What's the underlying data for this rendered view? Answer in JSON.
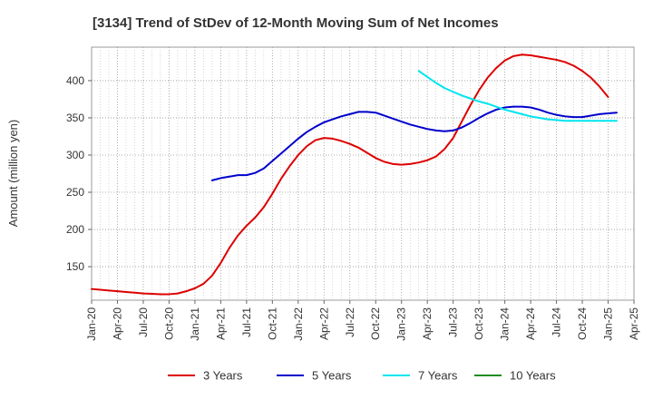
{
  "chart_data": {
    "type": "line",
    "title": "[3134]  Trend of StDev of 12-Month Moving Sum of Net Incomes",
    "xlabel": "",
    "ylabel": "Amount (million yen)",
    "x_ticks": [
      "Jan-20",
      "Apr-20",
      "Jul-20",
      "Oct-20",
      "Jan-21",
      "Apr-21",
      "Jul-21",
      "Oct-21",
      "Jan-22",
      "Apr-22",
      "Jul-22",
      "Oct-22",
      "Jan-23",
      "Apr-23",
      "Jul-23",
      "Oct-23",
      "Jan-24",
      "Apr-24",
      "Jul-24",
      "Oct-24",
      "Jan-25",
      "Apr-25"
    ],
    "y_ticks": [
      150,
      200,
      250,
      300,
      350,
      400
    ],
    "ylim": [
      105,
      445
    ],
    "grid": true,
    "legend_position": "bottom",
    "series": [
      {
        "name": "3 Years",
        "color": "#dd0000",
        "values": [
          [
            "2020-01",
            120
          ],
          [
            "2020-02",
            119
          ],
          [
            "2020-03",
            118
          ],
          [
            "2020-04",
            117
          ],
          [
            "2020-05",
            116
          ],
          [
            "2020-06",
            115
          ],
          [
            "2020-07",
            114
          ],
          [
            "2020-08",
            113.5
          ],
          [
            "2020-09",
            113
          ],
          [
            "2020-10",
            113
          ],
          [
            "2020-11",
            114
          ],
          [
            "2020-12",
            117
          ],
          [
            "2021-01",
            121
          ],
          [
            "2021-02",
            127
          ],
          [
            "2021-03",
            138
          ],
          [
            "2021-04",
            155
          ],
          [
            "2021-05",
            175
          ],
          [
            "2021-06",
            192
          ],
          [
            "2021-07",
            205
          ],
          [
            "2021-08",
            216
          ],
          [
            "2021-09",
            230
          ],
          [
            "2021-10",
            248
          ],
          [
            "2021-11",
            268
          ],
          [
            "2021-12",
            285
          ],
          [
            "2022-01",
            300
          ],
          [
            "2022-02",
            312
          ],
          [
            "2022-03",
            320
          ],
          [
            "2022-04",
            323
          ],
          [
            "2022-05",
            322
          ],
          [
            "2022-06",
            319
          ],
          [
            "2022-07",
            315
          ],
          [
            "2022-08",
            310
          ],
          [
            "2022-09",
            303
          ],
          [
            "2022-10",
            296
          ],
          [
            "2022-11",
            291
          ],
          [
            "2022-12",
            288
          ],
          [
            "2023-01",
            287
          ],
          [
            "2023-02",
            288
          ],
          [
            "2023-03",
            290
          ],
          [
            "2023-04",
            293
          ],
          [
            "2023-05",
            298
          ],
          [
            "2023-06",
            308
          ],
          [
            "2023-07",
            323
          ],
          [
            "2023-08",
            345
          ],
          [
            "2023-09",
            367
          ],
          [
            "2023-10",
            387
          ],
          [
            "2023-11",
            404
          ],
          [
            "2023-12",
            417
          ],
          [
            "2024-01",
            427
          ],
          [
            "2024-02",
            433
          ],
          [
            "2024-03",
            435
          ],
          [
            "2024-04",
            434
          ],
          [
            "2024-05",
            432
          ],
          [
            "2024-06",
            430
          ],
          [
            "2024-07",
            428
          ],
          [
            "2024-08",
            425
          ],
          [
            "2024-09",
            420
          ],
          [
            "2024-10",
            413
          ],
          [
            "2024-11",
            404
          ],
          [
            "2024-12",
            392
          ],
          [
            "2025-01",
            378
          ]
        ]
      },
      {
        "name": "5 Years",
        "color": "#0000cc",
        "values": [
          [
            "2021-03",
            266
          ],
          [
            "2021-04",
            269
          ],
          [
            "2021-05",
            271
          ],
          [
            "2021-06",
            273
          ],
          [
            "2021-07",
            273
          ],
          [
            "2021-08",
            276
          ],
          [
            "2021-09",
            282
          ],
          [
            "2021-10",
            292
          ],
          [
            "2021-11",
            302
          ],
          [
            "2021-12",
            312
          ],
          [
            "2022-01",
            322
          ],
          [
            "2022-02",
            331
          ],
          [
            "2022-03",
            338
          ],
          [
            "2022-04",
            344
          ],
          [
            "2022-05",
            348
          ],
          [
            "2022-06",
            352
          ],
          [
            "2022-07",
            355
          ],
          [
            "2022-08",
            358
          ],
          [
            "2022-09",
            358
          ],
          [
            "2022-10",
            357
          ],
          [
            "2022-11",
            353
          ],
          [
            "2022-12",
            349
          ],
          [
            "2023-01",
            345
          ],
          [
            "2023-02",
            341
          ],
          [
            "2023-03",
            338
          ],
          [
            "2023-04",
            335
          ],
          [
            "2023-05",
            333
          ],
          [
            "2023-06",
            332
          ],
          [
            "2023-07",
            333
          ],
          [
            "2023-08",
            337
          ],
          [
            "2023-09",
            343
          ],
          [
            "2023-10",
            350
          ],
          [
            "2023-11",
            356
          ],
          [
            "2023-12",
            361
          ],
          [
            "2024-01",
            364
          ],
          [
            "2024-02",
            365
          ],
          [
            "2024-03",
            365
          ],
          [
            "2024-04",
            364
          ],
          [
            "2024-05",
            361
          ],
          [
            "2024-06",
            357
          ],
          [
            "2024-07",
            354
          ],
          [
            "2024-08",
            352
          ],
          [
            "2024-09",
            351
          ],
          [
            "2024-10",
            351
          ],
          [
            "2024-11",
            353
          ],
          [
            "2024-12",
            355
          ],
          [
            "2025-01",
            356
          ],
          [
            "2025-02",
            357
          ]
        ]
      },
      {
        "name": "7 Years",
        "color": "#00e5ee",
        "values": [
          [
            "2023-03",
            413
          ],
          [
            "2023-04",
            405
          ],
          [
            "2023-05",
            397
          ],
          [
            "2023-06",
            390
          ],
          [
            "2023-07",
            385
          ],
          [
            "2023-08",
            380
          ],
          [
            "2023-09",
            376
          ],
          [
            "2023-10",
            372
          ],
          [
            "2023-11",
            369
          ],
          [
            "2023-12",
            365
          ],
          [
            "2024-01",
            361
          ],
          [
            "2024-02",
            358
          ],
          [
            "2024-03",
            355
          ],
          [
            "2024-04",
            352
          ],
          [
            "2024-05",
            350
          ],
          [
            "2024-06",
            348
          ],
          [
            "2024-07",
            347
          ],
          [
            "2024-08",
            346
          ],
          [
            "2024-09",
            346
          ],
          [
            "2024-10",
            346
          ],
          [
            "2024-11",
            346
          ],
          [
            "2024-12",
            346
          ],
          [
            "2025-01",
            346
          ],
          [
            "2025-02",
            346
          ]
        ]
      },
      {
        "name": "10 Years",
        "color": "#228b22",
        "values": []
      }
    ]
  }
}
